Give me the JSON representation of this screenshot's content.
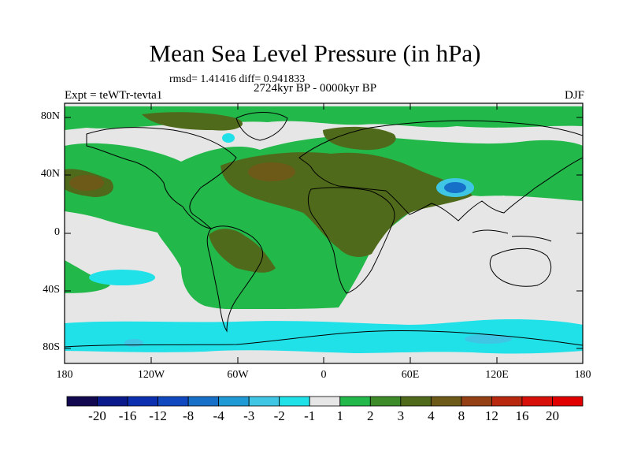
{
  "title": "Mean Sea Level Pressure (in hPa)",
  "stats": {
    "text": "rmsd= 1.41416 diff= 0.941833"
  },
  "period": "2724kyr BP - 0000kyr BP",
  "experiment": "Expt = teWTr-tevta1",
  "season": "DJF",
  "axes": {
    "y_ticks": [
      "80N",
      "40N",
      "0",
      "40S",
      "80S"
    ],
    "x_ticks": [
      "180",
      "120W",
      "60W",
      "0",
      "60E",
      "120E",
      "180"
    ]
  },
  "colorbar": {
    "labels": [
      "-20",
      "-16",
      "-12",
      "-8",
      "-4",
      "-3",
      "-2",
      "-1",
      "1",
      "2",
      "3",
      "4",
      "8",
      "12",
      "16",
      "20"
    ],
    "colors": [
      "#11084f",
      "#0b1a8a",
      "#0c2fb0",
      "#1048c0",
      "#1770c8",
      "#1f9ad5",
      "#3ec6e4",
      "#20e0e8",
      "#e6e6e6",
      "#22b84a",
      "#3c8a28",
      "#4f6a1a",
      "#6e5a18",
      "#944014",
      "#b7280e",
      "#d8100a",
      "#e00000"
    ]
  },
  "chart_data": {
    "type": "heatmap",
    "title": "Mean Sea Level Pressure (in hPa)",
    "variable": "Mean Sea Level Pressure",
    "units": "hPa",
    "season": "DJF",
    "rmsd": 1.41416,
    "diff": 0.941833,
    "x_range": [
      -180,
      180
    ],
    "y_range": [
      -90,
      90
    ],
    "levels": [
      -20,
      -16,
      -12,
      -8,
      -4,
      -3,
      -2,
      -1,
      1,
      2,
      3,
      4,
      8,
      12,
      16,
      20
    ]
  }
}
